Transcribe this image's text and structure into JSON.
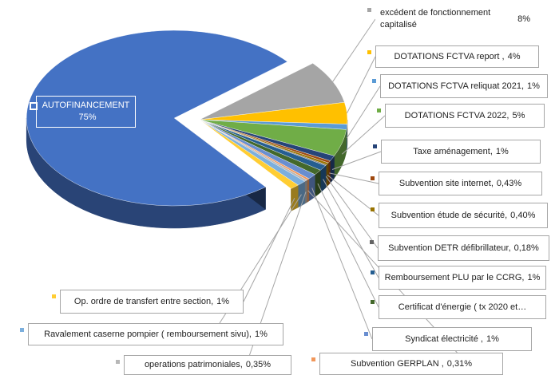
{
  "chart_data": {
    "type": "pie",
    "categories": [
      "AUTOFINANCEMENT",
      "excédent de fonctionnement capitalisé",
      "DOTATIONS FCTVA report ,",
      "DOTATIONS FCTVA reliquat 2021,",
      "DOTATIONS FCTVA 2022,",
      "Taxe aménagement,",
      "Subvention site internet,",
      "Subvention étude de sécurité,",
      "Subvention DETR défibrillateur,",
      "Remboursement PLU par le CCRG,",
      "Certificat d'énergie ( tx 2020 et…",
      "Syndicat électricité ,",
      "Subvention GERPLAN ,",
      "operations patrimoniales,",
      "Ravalement caserne pompier ( remboursement sivu),",
      "Op. ordre de transfert entre section,"
    ],
    "values": [
      75,
      8,
      4,
      1,
      5,
      1,
      0.43,
      0.4,
      0.18,
      1,
      1,
      1,
      0.31,
      0.35,
      1,
      1
    ],
    "value_labels": [
      "75%",
      "8%",
      "4%",
      "1%",
      "5%",
      "1%",
      "0,43%",
      "0,40%",
      "0,18%",
      "1%",
      null,
      "1%",
      "0,31%",
      "0,35%",
      "1%",
      "1%"
    ],
    "colors": [
      "#4472c4",
      "#a5a5a5",
      "#ffc000",
      "#5b9bd5",
      "#70ad47",
      "#264478",
      "#9e480e",
      "#997300",
      "#636363",
      "#255e91",
      "#43682b",
      "#698ed0",
      "#f1975a",
      "#b7b7b7",
      "#7cafdd",
      "#ffcd33"
    ]
  }
}
